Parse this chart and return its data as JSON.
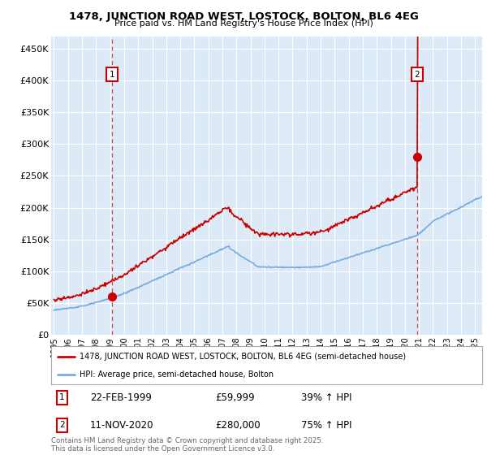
{
  "title": "1478, JUNCTION ROAD WEST, LOSTOCK, BOLTON, BL6 4EG",
  "subtitle": "Price paid vs. HM Land Registry's House Price Index (HPI)",
  "plot_bg_color": "#dce9f7",
  "ylabel_ticks": [
    "£0",
    "£50K",
    "£100K",
    "£150K",
    "£200K",
    "£250K",
    "£300K",
    "£350K",
    "£400K",
    "£450K"
  ],
  "ytick_values": [
    0,
    50000,
    100000,
    150000,
    200000,
    250000,
    300000,
    350000,
    400000,
    450000
  ],
  "ylim": [
    0,
    470000
  ],
  "xlim_start": 1994.8,
  "xlim_end": 2025.5,
  "t1_x": 1999.14,
  "t1_y": 59999,
  "t2_x": 2020.87,
  "t2_y": 280000,
  "legend_line1": "1478, JUNCTION ROAD WEST, LOSTOCK, BOLTON, BL6 4EG (semi-detached house)",
  "legend_line2": "HPI: Average price, semi-detached house, Bolton",
  "note1_label": "1",
  "note1_date": "22-FEB-1999",
  "note1_price": "£59,999",
  "note1_hpi": "39% ↑ HPI",
  "note2_label": "2",
  "note2_date": "11-NOV-2020",
  "note2_price": "£280,000",
  "note2_hpi": "75% ↑ HPI",
  "footer": "Contains HM Land Registry data © Crown copyright and database right 2025.\nThis data is licensed under the Open Government Licence v3.0.",
  "red_color": "#cc0000",
  "blue_color": "#7aabe0",
  "grid_color": "white"
}
